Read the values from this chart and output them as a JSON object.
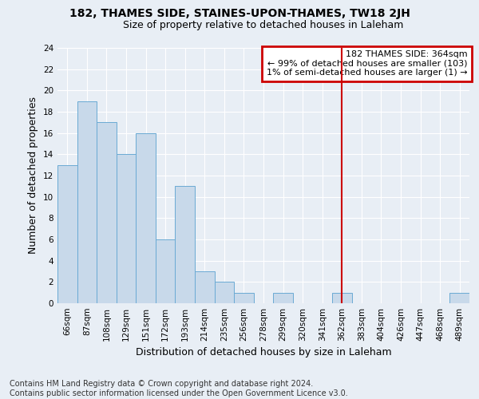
{
  "title": "182, THAMES SIDE, STAINES-UPON-THAMES, TW18 2JH",
  "subtitle": "Size of property relative to detached houses in Laleham",
  "xlabel": "Distribution of detached houses by size in Laleham",
  "ylabel": "Number of detached properties",
  "categories": [
    "66sqm",
    "87sqm",
    "108sqm",
    "129sqm",
    "151sqm",
    "172sqm",
    "193sqm",
    "214sqm",
    "235sqm",
    "256sqm",
    "278sqm",
    "299sqm",
    "320sqm",
    "341sqm",
    "362sqm",
    "383sqm",
    "404sqm",
    "426sqm",
    "447sqm",
    "468sqm",
    "489sqm"
  ],
  "values": [
    13,
    19,
    17,
    14,
    16,
    6,
    11,
    3,
    2,
    1,
    0,
    1,
    0,
    0,
    1,
    0,
    0,
    0,
    0,
    0,
    1
  ],
  "bar_color": "#c8d9ea",
  "bar_edge_color": "#6aaad4",
  "vline_x": 14,
  "vline_color": "#cc0000",
  "annotation_line1": "182 THAMES SIDE: 364sqm",
  "annotation_line2": "← 99% of detached houses are smaller (103)",
  "annotation_line3": "1% of semi-detached houses are larger (1) →",
  "annotation_box_color": "#cc0000",
  "ylim": [
    0,
    24
  ],
  "yticks": [
    0,
    2,
    4,
    6,
    8,
    10,
    12,
    14,
    16,
    18,
    20,
    22,
    24
  ],
  "footer": "Contains HM Land Registry data © Crown copyright and database right 2024.\nContains public sector information licensed under the Open Government Licence v3.0.",
  "background_color": "#e8eef5",
  "plot_bg_color": "#e8eef5",
  "grid_color": "#ffffff",
  "title_fontsize": 10,
  "subtitle_fontsize": 9,
  "axis_label_fontsize": 9,
  "tick_fontsize": 7.5,
  "annotation_fontsize": 8,
  "footer_fontsize": 7
}
